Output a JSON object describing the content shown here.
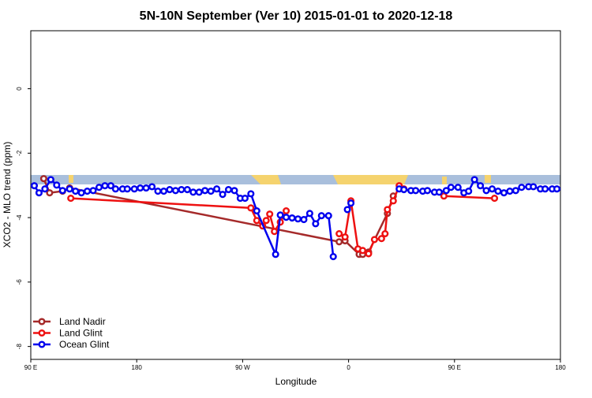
{
  "chart_data": {
    "type": "line",
    "title": "5N-10N September (Ver 10)   2015-01-01 to 2020-12-18",
    "x_label": "Longitude",
    "y_label": "XCO2 - MLO trend (ppm)",
    "xlim": [
      90,
      540
    ],
    "xticks": [
      {
        "value": 90,
        "label": "90 E"
      },
      {
        "value": 180,
        "label": "180"
      },
      {
        "value": 270,
        "label": "90 W"
      },
      {
        "value": 360,
        "label": "0"
      },
      {
        "value": 450,
        "label": "90 E"
      },
      {
        "value": 540,
        "label": "180"
      }
    ],
    "ylim": [
      -8.4,
      1.8
    ],
    "yticks": [
      0,
      -2,
      -4,
      -6,
      -8
    ],
    "legend": "bottom-left",
    "series": [
      {
        "name": "Land Nadir",
        "color": "#a52a2a",
        "x": [
          101,
          106,
          117,
          123,
          352,
          357,
          369,
          372,
          377,
          393,
          398
        ],
        "values": [
          -2.79,
          -3.23,
          -3.18,
          -3.08,
          -4.75,
          -4.72,
          -5.14,
          -5.14,
          -5.07,
          -3.87,
          -3.33
        ]
      },
      {
        "name": "Land Glint",
        "color": "#ee1111",
        "x": [
          124,
          277,
          282,
          287,
          290,
          293,
          297,
          302,
          307,
          330,
          352,
          357,
          362,
          368,
          372,
          377,
          382,
          388,
          391,
          393,
          398,
          403,
          407,
          425,
          441,
          484
        ],
        "values": [
          -3.4,
          -3.7,
          -4.09,
          -4.26,
          -4.09,
          -3.89,
          -4.43,
          -4.14,
          -3.79,
          null,
          -4.5,
          -4.6,
          -3.48,
          -4.97,
          -5.02,
          -5.12,
          -4.68,
          -4.65,
          -4.5,
          -3.75,
          -3.48,
          -3.01,
          -3.11,
          null,
          -3.33,
          -3.4
        ]
      },
      {
        "name": "Ocean Glint",
        "color": "#0000ee",
        "x": [
          93,
          97,
          102,
          107,
          112,
          117,
          123,
          128,
          133,
          138,
          143,
          148,
          153,
          158,
          162,
          168,
          172,
          178,
          183,
          188,
          193,
          198,
          203,
          208,
          213,
          218,
          223,
          228,
          233,
          238,
          243,
          248,
          253,
          258,
          263,
          268,
          272,
          277,
          282,
          298,
          302,
          307,
          312,
          317,
          322,
          327,
          332,
          337,
          343,
          347,
          352,
          359,
          362,
          380,
          403,
          407,
          413,
          417,
          423,
          427,
          433,
          437,
          443,
          447,
          453,
          458,
          462,
          467,
          472,
          477,
          482,
          487,
          492,
          497,
          502,
          507,
          513,
          517,
          523,
          527,
          533,
          537
        ],
        "values": [
          -3.01,
          -3.23,
          -3.11,
          -2.82,
          -2.99,
          -3.16,
          -3.11,
          -3.18,
          -3.23,
          -3.18,
          -3.16,
          -3.06,
          -3.01,
          -3.01,
          -3.11,
          -3.11,
          -3.11,
          -3.11,
          -3.08,
          -3.08,
          -3.04,
          -3.18,
          -3.18,
          -3.13,
          -3.16,
          -3.13,
          -3.13,
          -3.21,
          -3.21,
          -3.16,
          -3.18,
          -3.11,
          -3.28,
          -3.13,
          -3.16,
          -3.4,
          -3.4,
          -3.26,
          -3.79,
          -5.14,
          -3.92,
          -3.99,
          -4.01,
          -4.04,
          -4.06,
          -3.87,
          -4.19,
          -3.94,
          -3.94,
          -5.21,
          null,
          -3.75,
          -3.55,
          null,
          -3.11,
          -3.13,
          -3.16,
          -3.16,
          -3.18,
          -3.16,
          -3.21,
          -3.21,
          -3.16,
          -3.06,
          -3.06,
          -3.23,
          -3.18,
          -2.82,
          -3.01,
          -3.16,
          -3.11,
          -3.18,
          -3.23,
          -3.18,
          -3.16,
          -3.06,
          -3.04,
          -3.04,
          -3.11,
          -3.11,
          -3.11,
          -3.11
        ]
      }
    ]
  }
}
